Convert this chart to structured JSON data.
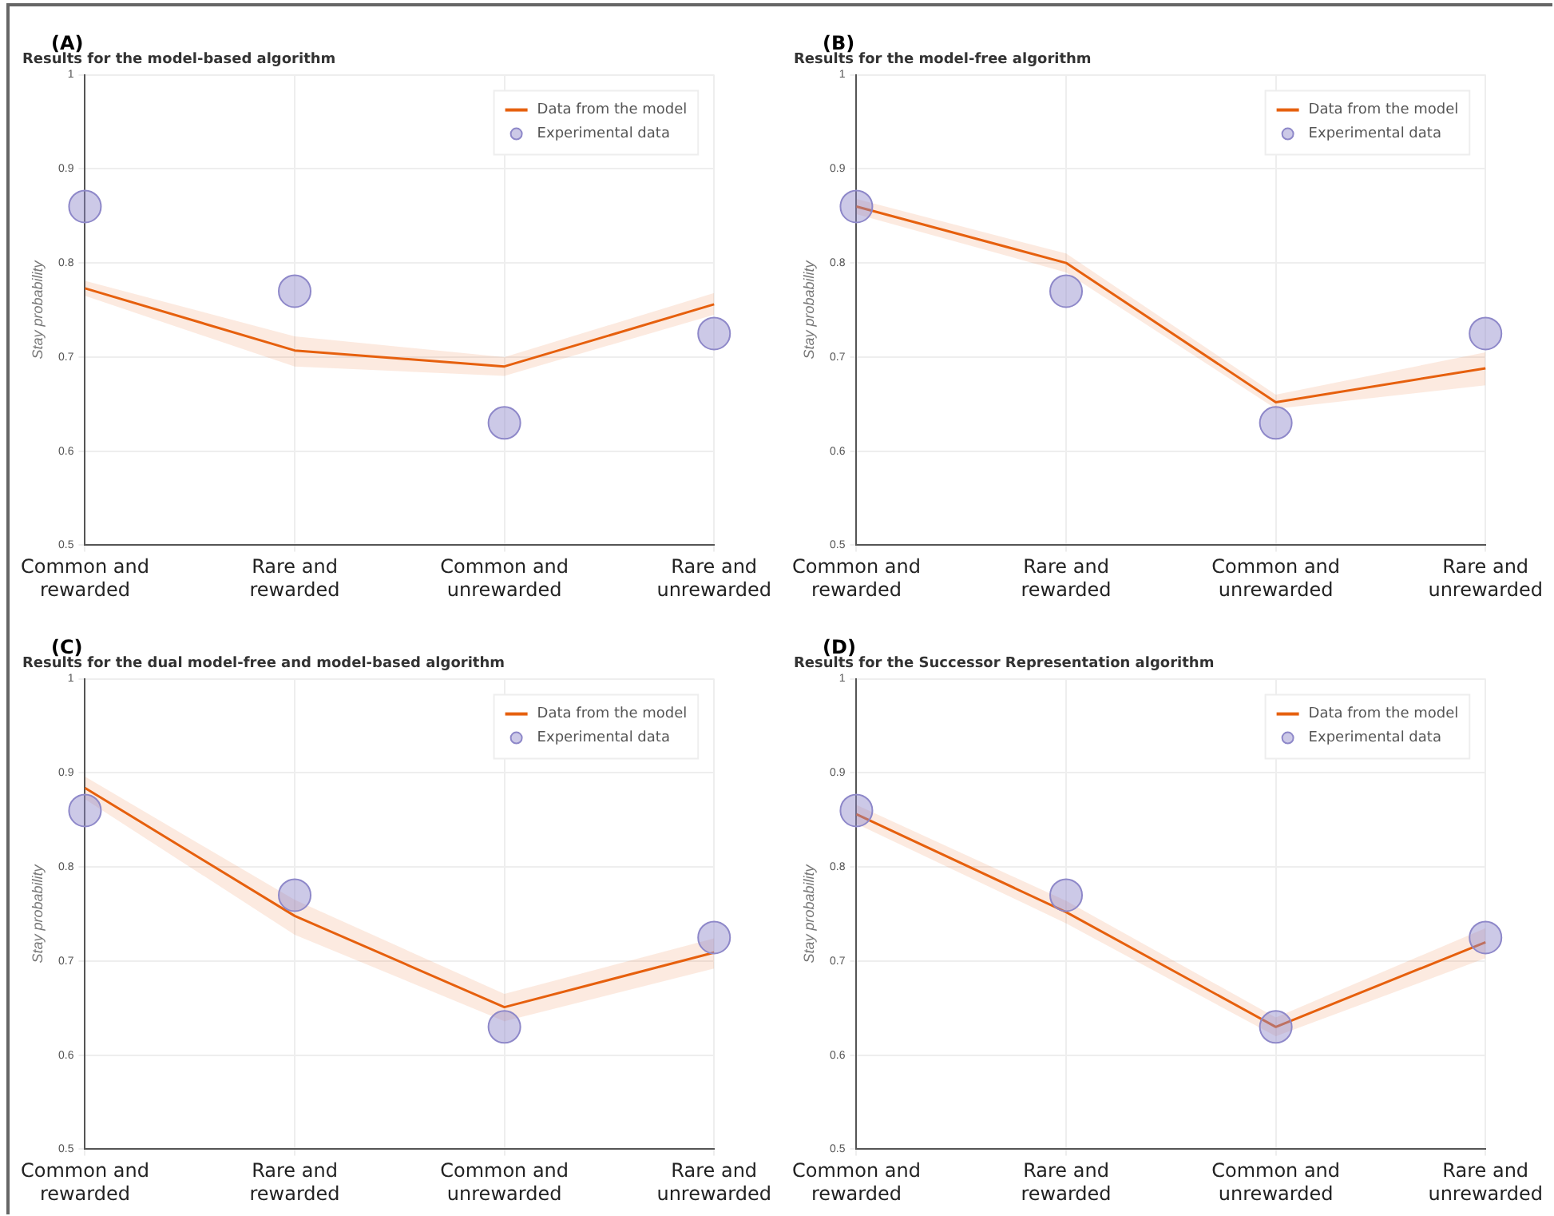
{
  "chart_data": [
    {
      "type": "line",
      "title": "Results for the model-based algorithm",
      "ylabel": "Stay probability",
      "annotations": [
        "(A)"
      ],
      "categories": [
        "Common and rewarded",
        "Rare and rewarded",
        "Common and unrewarded",
        "Rare and unrewarded"
      ],
      "ylim": [
        0.5,
        1
      ],
      "yticks": [
        0.5,
        0.6,
        0.7,
        0.8,
        0.9,
        1
      ],
      "grid": true,
      "legend": "top right",
      "series": [
        {
          "name": "Data from the model",
          "type": "line",
          "color": "#e6600e",
          "marker": "none",
          "values": [
            0.773,
            0.707,
            0.69,
            0.756
          ],
          "lower": [
            0.765,
            0.69,
            0.68,
            0.745
          ],
          "upper": [
            0.781,
            0.722,
            0.7,
            0.768
          ]
        },
        {
          "name": "Experimental data",
          "type": "scatter",
          "color": "#8e88c9",
          "marker": "circle",
          "values": [
            0.86,
            0.77,
            0.63,
            0.725
          ]
        }
      ]
    },
    {
      "type": "line",
      "title": "Results for the model-free algorithm",
      "ylabel": "Stay probability",
      "annotations": [
        "(B)"
      ],
      "categories": [
        "Common and rewarded",
        "Rare and rewarded",
        "Common and unrewarded",
        "Rare and unrewarded"
      ],
      "ylim": [
        0.5,
        1
      ],
      "yticks": [
        0.5,
        0.6,
        0.7,
        0.8,
        0.9,
        1
      ],
      "grid": true,
      "legend": "top right",
      "series": [
        {
          "name": "Data from the model",
          "type": "line",
          "color": "#e6600e",
          "marker": "none",
          "values": [
            0.86,
            0.8,
            0.652,
            0.688
          ],
          "lower": [
            0.852,
            0.79,
            0.645,
            0.67
          ],
          "upper": [
            0.868,
            0.81,
            0.66,
            0.705
          ]
        },
        {
          "name": "Experimental data",
          "type": "scatter",
          "color": "#8e88c9",
          "marker": "circle",
          "values": [
            0.86,
            0.77,
            0.63,
            0.725
          ]
        }
      ]
    },
    {
      "type": "line",
      "title": "Results for the dual model-free and model-based algorithm",
      "ylabel": "Stay probability",
      "annotations": [
        "(C)"
      ],
      "categories": [
        "Common and rewarded",
        "Rare and rewarded",
        "Common and unrewarded",
        "Rare and unrewarded"
      ],
      "ylim": [
        0.5,
        1
      ],
      "yticks": [
        0.5,
        0.6,
        0.7,
        0.8,
        0.9,
        1
      ],
      "grid": true,
      "legend": "top right",
      "series": [
        {
          "name": "Data from the model",
          "type": "line",
          "color": "#e6600e",
          "marker": "none",
          "values": [
            0.884,
            0.748,
            0.651,
            0.709
          ],
          "lower": [
            0.872,
            0.728,
            0.636,
            0.692
          ],
          "upper": [
            0.896,
            0.765,
            0.665,
            0.724
          ]
        },
        {
          "name": "Experimental data",
          "type": "scatter",
          "color": "#8e88c9",
          "marker": "circle",
          "values": [
            0.86,
            0.77,
            0.63,
            0.725
          ]
        }
      ]
    },
    {
      "type": "line",
      "title": "Results for the Successor Representation algorithm",
      "ylabel": "Stay probability",
      "annotations": [
        "(D)"
      ],
      "categories": [
        "Common and rewarded",
        "Rare and rewarded",
        "Common and unrewarded",
        "Rare and unrewarded"
      ],
      "ylim": [
        0.5,
        1
      ],
      "yticks": [
        0.5,
        0.6,
        0.7,
        0.8,
        0.9,
        1
      ],
      "grid": true,
      "legend": "top right",
      "series": [
        {
          "name": "Data from the model",
          "type": "line",
          "color": "#e6600e",
          "marker": "none",
          "values": [
            0.856,
            0.752,
            0.63,
            0.72
          ],
          "lower": [
            0.846,
            0.74,
            0.62,
            0.703
          ],
          "upper": [
            0.866,
            0.764,
            0.64,
            0.735
          ]
        },
        {
          "name": "Experimental data",
          "type": "scatter",
          "color": "#8e88c9",
          "marker": "circle",
          "values": [
            0.86,
            0.77,
            0.63,
            0.725
          ]
        }
      ]
    }
  ]
}
